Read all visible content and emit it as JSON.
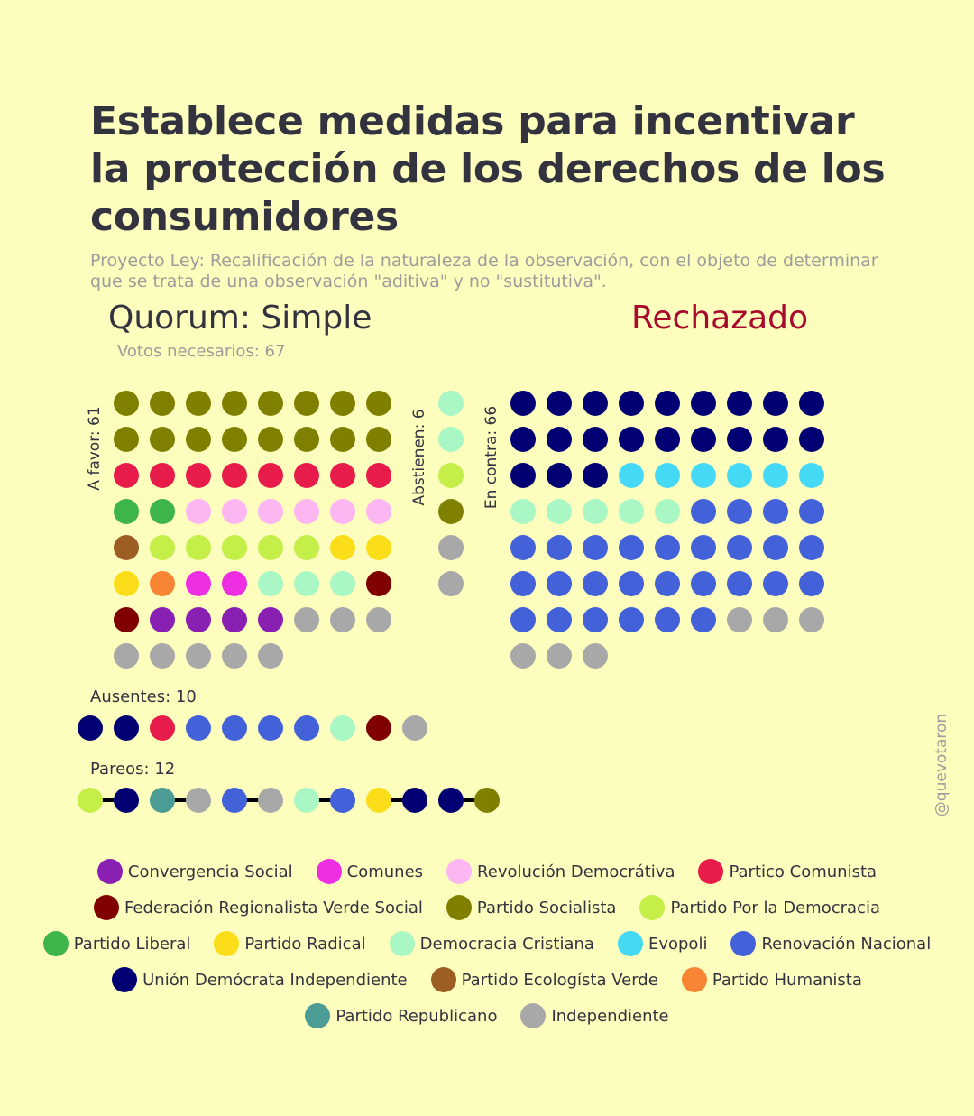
{
  "title": "Establece medidas para incentivar la protección de los derechos de los consumidores",
  "subtitle": "Proyecto Ley: Recalificación de la naturaleza de la observación, con el objeto de determinar que se trata de una observación \"aditiva\" y no \"sustitutiva\".",
  "quorum": "Quorum: Simple",
  "result": "Rechazado",
  "needed": "Votos necesarios: 67",
  "watermark": "@quevotaron",
  "colors": {
    "CS": "#8a1fb3",
    "COM": "#ee2ee3",
    "RD": "#fcb7f2",
    "PC": "#e81c4a",
    "FRVS": "#800000",
    "PS": "#808000",
    "PPD": "#c4ee48",
    "PL": "#3db54a",
    "PR": "#fbdd1a",
    "DC": "#a8f7c5",
    "EVO": "#46d9f5",
    "RN": "#4361d9",
    "UDI": "#000073",
    "PEV": "#9c5e23",
    "PH": "#f78534",
    "REP": "#4a9c94",
    "IND": "#a8a8a8"
  },
  "legend": [
    [
      {
        "key": "CS",
        "label": "Convergencia Social"
      },
      {
        "key": "COM",
        "label": "Comunes"
      },
      {
        "key": "RD",
        "label": "Revolución Democrátiva"
      },
      {
        "key": "PC",
        "label": "Partico Comunista"
      }
    ],
    [
      {
        "key": "FRVS",
        "label": "Federación Regionalista Verde Social"
      },
      {
        "key": "PS",
        "label": "Partido Socialista"
      },
      {
        "key": "PPD",
        "label": "Partido Por la Democracia"
      }
    ],
    [
      {
        "key": "PL",
        "label": "Partido Liberal"
      },
      {
        "key": "PR",
        "label": "Partido Radical"
      },
      {
        "key": "DC",
        "label": "Democracia Cristiana"
      },
      {
        "key": "EVO",
        "label": "Evopoli"
      },
      {
        "key": "RN",
        "label": "Renovación Nacional"
      }
    ],
    [
      {
        "key": "UDI",
        "label": "Unión Demócrata Independiente"
      },
      {
        "key": "PEV",
        "label": "Partido Ecologísta Verde"
      },
      {
        "key": "PH",
        "label": "Partido Humanista"
      }
    ],
    [
      {
        "key": "REP",
        "label": "Partido Republicano"
      },
      {
        "key": "IND",
        "label": "Independiente"
      }
    ]
  ],
  "chart_data": {
    "type": "waffle",
    "groups": [
      {
        "id": "favor",
        "label": "A favor: 61",
        "count": 61,
        "seats": [
          [
            "PS",
            16
          ],
          [
            "PC",
            8
          ],
          [
            "PL",
            2
          ],
          [
            "RD",
            6
          ],
          [
            "PEV",
            1
          ],
          [
            "PPD",
            5
          ],
          [
            "PR",
            3
          ],
          [
            "PH",
            1
          ],
          [
            "COM",
            2
          ],
          [
            "DC",
            3
          ],
          [
            "FRVS",
            2
          ],
          [
            "CS",
            4
          ],
          [
            "IND",
            8
          ]
        ]
      },
      {
        "id": "abstain",
        "label": "Abstienen: 6",
        "count": 6,
        "seats": [
          [
            "DC",
            2
          ],
          [
            "PPD",
            1
          ],
          [
            "PS",
            1
          ],
          [
            "IND",
            2
          ]
        ]
      },
      {
        "id": "contra",
        "label": "En contra: 66",
        "count": 66,
        "seats": [
          [
            "UDI",
            21
          ],
          [
            "EVO",
            6
          ],
          [
            "DC",
            5
          ],
          [
            "RN",
            28
          ],
          [
            "IND",
            6
          ]
        ]
      },
      {
        "id": "absent",
        "label": "Ausentes: 10",
        "count": 10,
        "seats": [
          [
            "UDI",
            2
          ],
          [
            "PC",
            1
          ],
          [
            "RN",
            4
          ],
          [
            "DC",
            1
          ],
          [
            "FRVS",
            1
          ],
          [
            "IND",
            1
          ]
        ]
      },
      {
        "id": "pairs",
        "label": "Pareos: 12",
        "count": 12,
        "seats": [
          [
            "PPD",
            1
          ],
          [
            "UDI",
            1
          ],
          [
            "REP",
            1
          ],
          [
            "IND",
            1
          ],
          [
            "RN",
            1
          ],
          [
            "IND",
            1
          ],
          [
            "DC",
            1
          ],
          [
            "RN",
            1
          ],
          [
            "PR",
            1
          ],
          [
            "UDI",
            1
          ],
          [
            "UDI",
            1
          ],
          [
            "PS",
            1
          ]
        ]
      }
    ]
  }
}
